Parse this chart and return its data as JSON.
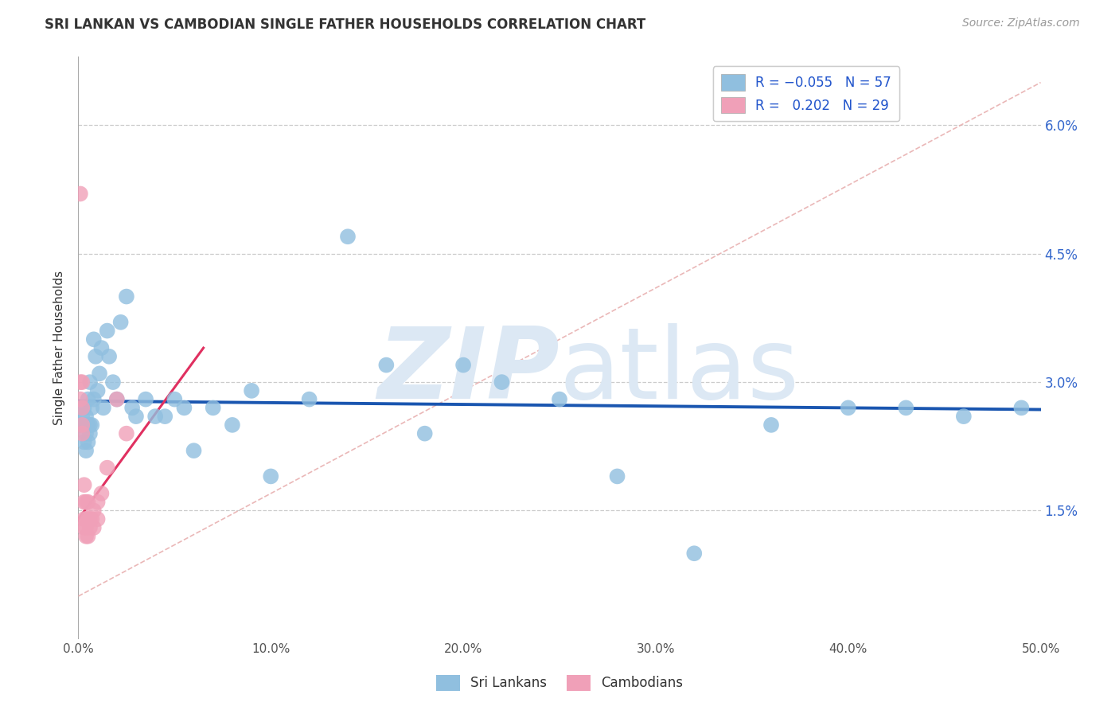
{
  "title": "SRI LANKAN VS CAMBODIAN SINGLE FATHER HOUSEHOLDS CORRELATION CHART",
  "source": "Source: ZipAtlas.com",
  "ylabel": "Single Father Households",
  "xlim": [
    0.0,
    0.5
  ],
  "ylim": [
    0.0,
    0.068
  ],
  "ytick_vals": [
    0.015,
    0.03,
    0.045,
    0.06
  ],
  "ytick_labels": [
    "1.5%",
    "3.0%",
    "4.5%",
    "6.0%"
  ],
  "xtick_vals": [
    0.0,
    0.1,
    0.2,
    0.3,
    0.4,
    0.5
  ],
  "xtick_labels": [
    "0.0%",
    "10.0%",
    "20.0%",
    "30.0%",
    "40.0%",
    "50.0%"
  ],
  "sri_lankan_color": "#90bfdf",
  "cambodian_color": "#f0a0b8",
  "regression_sri_color": "#1a56b0",
  "regression_cam_color": "#e03060",
  "diagonal_color": "#e8b0b0",
  "background_color": "#ffffff",
  "watermark_color": "#dce8f4",
  "sri_x": [
    0.001,
    0.001,
    0.002,
    0.002,
    0.003,
    0.003,
    0.003,
    0.004,
    0.004,
    0.004,
    0.005,
    0.005,
    0.005,
    0.006,
    0.006,
    0.006,
    0.007,
    0.007,
    0.008,
    0.008,
    0.009,
    0.01,
    0.011,
    0.012,
    0.013,
    0.015,
    0.016,
    0.018,
    0.02,
    0.022,
    0.025,
    0.028,
    0.03,
    0.035,
    0.04,
    0.045,
    0.05,
    0.055,
    0.06,
    0.07,
    0.08,
    0.09,
    0.1,
    0.12,
    0.14,
    0.16,
    0.18,
    0.2,
    0.22,
    0.25,
    0.28,
    0.32,
    0.36,
    0.4,
    0.43,
    0.46,
    0.49
  ],
  "sri_y": [
    0.027,
    0.025,
    0.026,
    0.025,
    0.027,
    0.025,
    0.023,
    0.026,
    0.024,
    0.022,
    0.028,
    0.025,
    0.023,
    0.03,
    0.025,
    0.024,
    0.027,
    0.025,
    0.035,
    0.028,
    0.033,
    0.029,
    0.031,
    0.034,
    0.027,
    0.036,
    0.033,
    0.03,
    0.028,
    0.037,
    0.04,
    0.027,
    0.026,
    0.028,
    0.026,
    0.026,
    0.028,
    0.027,
    0.022,
    0.027,
    0.025,
    0.029,
    0.019,
    0.028,
    0.047,
    0.032,
    0.024,
    0.032,
    0.03,
    0.028,
    0.019,
    0.01,
    0.025,
    0.027,
    0.027,
    0.026,
    0.027
  ],
  "cam_x": [
    0.001,
    0.001,
    0.001,
    0.002,
    0.002,
    0.002,
    0.002,
    0.003,
    0.003,
    0.003,
    0.003,
    0.004,
    0.004,
    0.004,
    0.004,
    0.005,
    0.005,
    0.005,
    0.006,
    0.006,
    0.007,
    0.008,
    0.008,
    0.01,
    0.01,
    0.012,
    0.015,
    0.02,
    0.025
  ],
  "cam_y": [
    0.052,
    0.03,
    0.028,
    0.03,
    0.027,
    0.025,
    0.024,
    0.018,
    0.016,
    0.014,
    0.013,
    0.016,
    0.014,
    0.013,
    0.012,
    0.016,
    0.014,
    0.012,
    0.014,
    0.013,
    0.014,
    0.015,
    0.013,
    0.016,
    0.014,
    0.017,
    0.02,
    0.028,
    0.024
  ]
}
